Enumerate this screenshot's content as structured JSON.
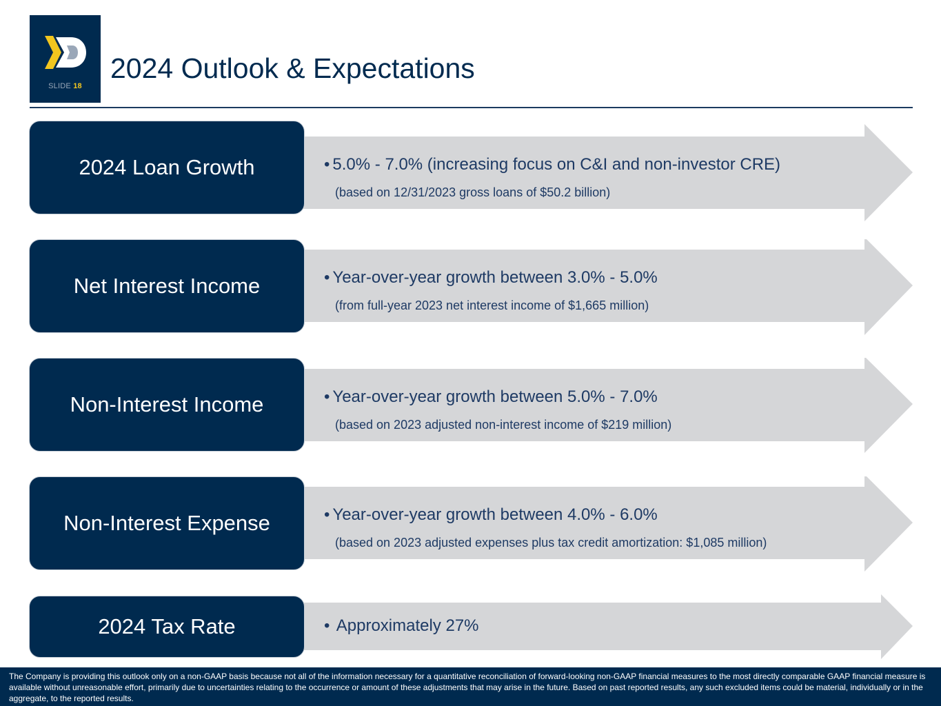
{
  "header": {
    "slide_label": "SLIDE",
    "slide_number": "18",
    "title": "2024 Outlook & Expectations"
  },
  "rows": [
    {
      "label": "2024 Loan Growth",
      "bullet": "5.0% - 7.0% (increasing focus on C&I and non-investor CRE)",
      "sub": "(based on 12/31/2023 gross loans of $50.2 billion)"
    },
    {
      "label": "Net Interest Income",
      "bullet": "Year-over-year growth between 3.0% - 5.0%",
      "sub": "(from full-year 2023 net interest income of $1,665 million)"
    },
    {
      "label": "Non-Interest Income",
      "bullet": "Year-over-year growth between 5.0% - 7.0%",
      "sub": "(based on 2023 adjusted non-interest income of $219 million)"
    },
    {
      "label": "Non-Interest Expense",
      "bullet": "Year-over-year growth between 4.0% - 6.0%",
      "sub": "(based on 2023 adjusted expenses plus tax credit amortization: $1,085 million)"
    },
    {
      "label": "2024 Tax Rate",
      "bullet": "Approximately 27%"
    }
  ],
  "footer": {
    "disclaimer": "The Company is providing this outlook only on a non-GAAP basis because not all of the information necessary for a quantitative reconciliation of forward-looking non-GAAP financial measures to the most directly comparable GAAP financial measure is available without unreasonable effort, primarily due to uncertainties relating to the occurrence or amount of these adjustments that may arise in the future. Based on past reported results, any such excluded items could be material, individually or in the aggregate, to the reported results."
  },
  "colors": {
    "navy": "#002a4f",
    "arrow_gray": "#d5d6d8",
    "text_navy": "#1e3a64",
    "logo_yellow": "#f2c61f"
  }
}
